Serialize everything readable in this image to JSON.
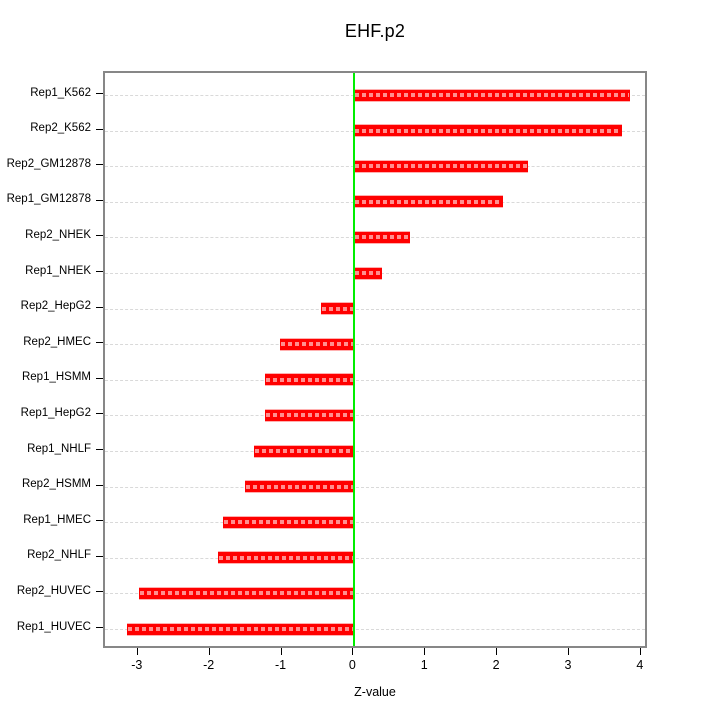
{
  "title": "EHF.p2",
  "xlabel": "Z-value",
  "chart_data": {
    "type": "bar",
    "orientation": "horizontal",
    "title": "EHF.p2",
    "xlabel": "Z-value",
    "categories": [
      "Rep1_K562",
      "Rep2_K562",
      "Rep2_GM12878",
      "Rep1_GM12878",
      "Rep2_NHEK",
      "Rep1_NHEK",
      "Rep2_HepG2",
      "Rep2_HMEC",
      "Rep1_HSMM",
      "Rep1_HepG2",
      "Rep1_NHLF",
      "Rep2_HSMM",
      "Rep1_HMEC",
      "Rep2_NHLF",
      "Rep2_HUVEC",
      "Rep1_HUVEC"
    ],
    "values": [
      3.84,
      3.72,
      2.42,
      2.07,
      0.77,
      0.39,
      -0.46,
      -1.03,
      -1.24,
      -1.25,
      -1.4,
      -1.52,
      -1.83,
      -1.9,
      -2.99,
      -3.17
    ],
    "xticks": [
      "-3",
      "-2",
      "-1",
      "0",
      "1",
      "2",
      "3",
      "4"
    ],
    "xtick_values": [
      -3,
      -2,
      -1,
      0,
      1,
      2,
      3,
      4
    ],
    "xlim": [
      -3.47,
      4.1
    ],
    "grid": "horizontal-dashed-per-category",
    "legend": "none",
    "colors": {
      "bar": "#ff0000",
      "bar_hatch": "#ff8f8f",
      "zero_line": "#00ee00",
      "gridline": "#d9d9d9",
      "plot_border": "#878787",
      "text": "#000000",
      "background": "#ffffff"
    }
  }
}
